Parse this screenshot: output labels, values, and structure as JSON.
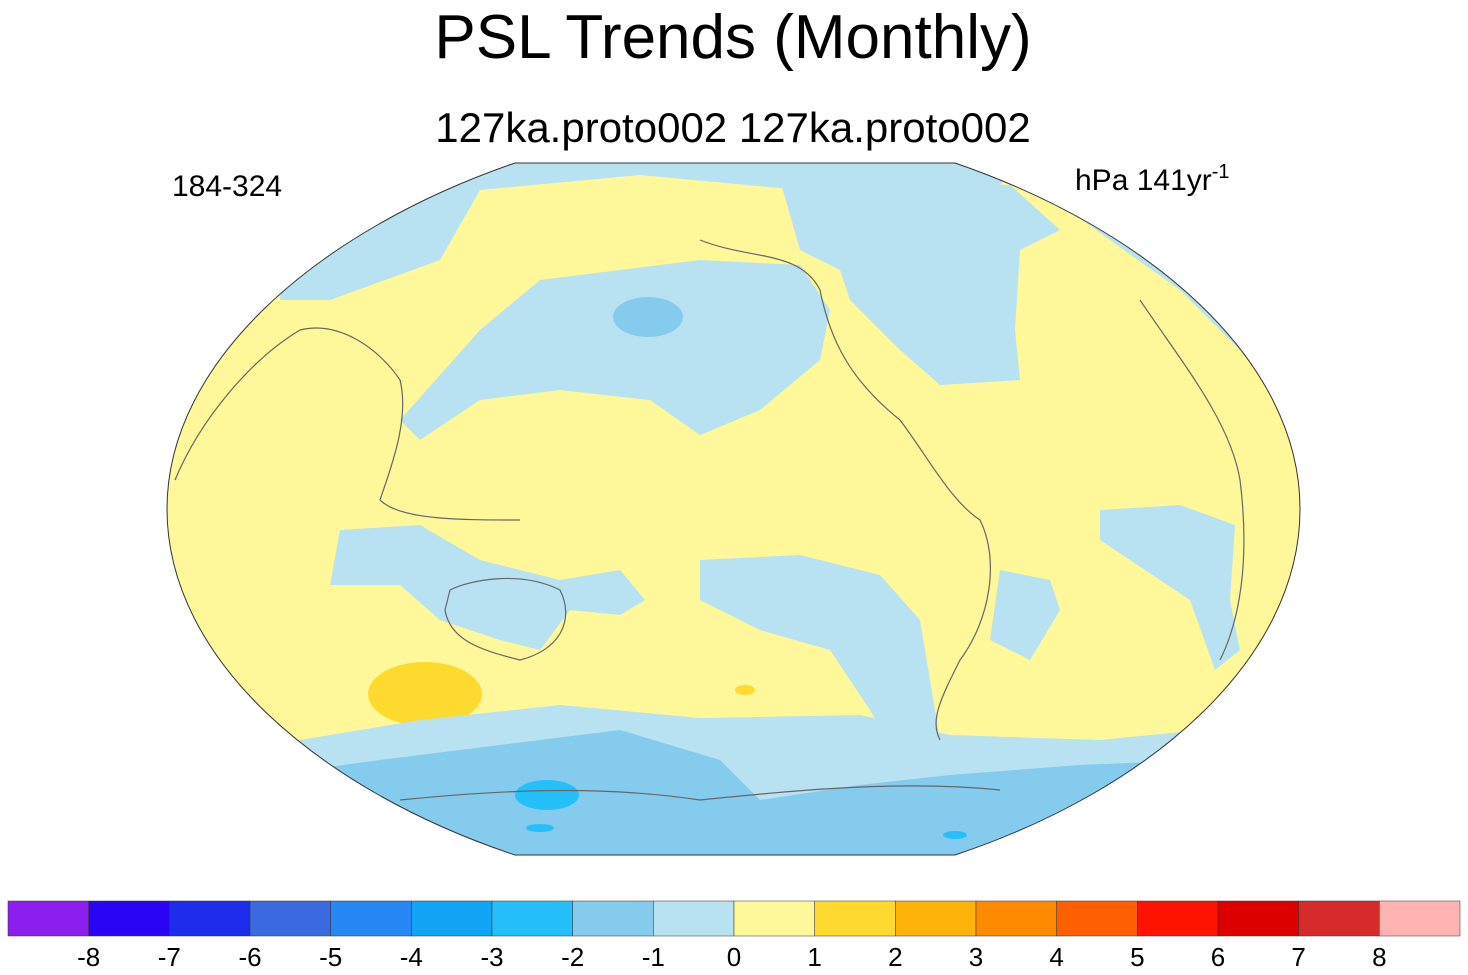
{
  "title": "PSL Trends (Monthly)",
  "subtitle": "127ka.proto002  127ka.proto002",
  "left_label": "184-324",
  "units": {
    "text": "hPa 141yr",
    "superscript": "-1"
  },
  "colorbar": {
    "colors": [
      "#8C1FF0",
      "#2A05F5",
      "#1E2DEC",
      "#3B6AE0",
      "#2787F5",
      "#12A5F5",
      "#25C0FA",
      "#85CBED",
      "#B8E1F2",
      "#FEF89A",
      "#FEDA2F",
      "#FEB309",
      "#FE8A00",
      "#FE5F00",
      "#FE1300",
      "#DD0000",
      "#D52B2B",
      "#FFB4B4"
    ],
    "levels": [
      -8,
      -7,
      -6,
      -5,
      -4,
      -3,
      -2,
      -1,
      0,
      1,
      2,
      3,
      4,
      5,
      6,
      7,
      8
    ]
  }
}
